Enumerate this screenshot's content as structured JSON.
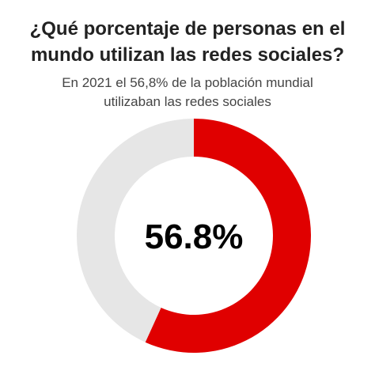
{
  "title": {
    "line1": "¿Qué porcentaje de personas en el",
    "line2": "mundo utilizan las redes sociales?"
  },
  "subtitle": {
    "line1": "En 2021 el 56,8% de la población mundial",
    "line2": "utilizaban  las redes sociales"
  },
  "chart_data": {
    "type": "pie",
    "donut": true,
    "values": [
      56.8,
      43.2
    ],
    "colors": [
      "#e00000",
      "#e6e6e6"
    ],
    "center_label": "56.8%"
  }
}
